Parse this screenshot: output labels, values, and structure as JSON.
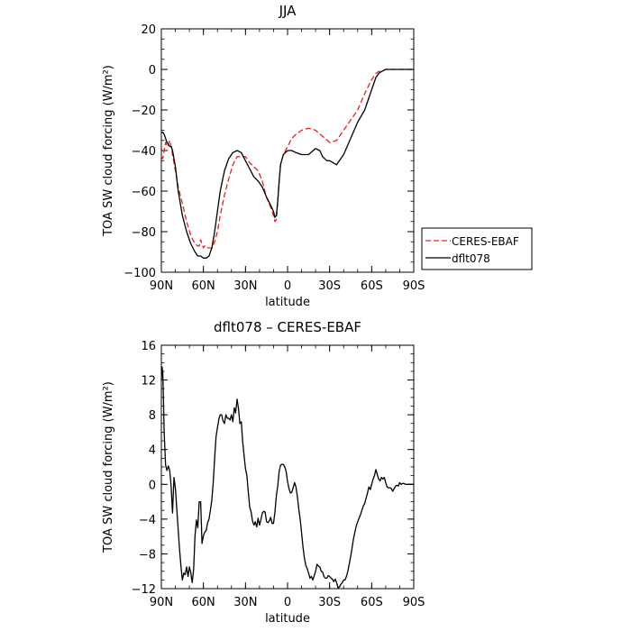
{
  "chart_data": [
    {
      "type": "line",
      "title": "JJA",
      "xlabel": "latitude",
      "ylabel": "TOA SW cloud forcing (W/m²)",
      "xlim": [
        90,
        -90
      ],
      "ylim": [
        -100,
        20
      ],
      "xticks": [
        90,
        60,
        30,
        0,
        -30,
        -60,
        -90
      ],
      "xtick_labels": [
        "90N",
        "60N",
        "30N",
        "0",
        "30S",
        "60S",
        "90S"
      ],
      "yticks": [
        -100,
        -80,
        -60,
        -40,
        -20,
        0,
        20
      ],
      "ytick_labels": [
        "−100",
        "−80",
        "−60",
        "−40",
        "−20",
        "0",
        "20"
      ],
      "legend_position": "outside right",
      "series": [
        {
          "name": "CERES-EBAF",
          "color": "#e8201e",
          "dash": "dashed",
          "x": [
            90,
            89,
            88,
            87,
            86,
            85,
            84,
            83,
            82,
            80,
            78,
            75,
            72,
            69,
            66,
            64,
            63,
            62,
            61,
            60,
            59,
            58,
            56,
            54,
            52,
            50,
            48,
            45,
            42,
            39,
            36,
            33,
            30,
            27,
            24,
            21,
            18,
            15,
            12,
            10,
            9,
            8,
            7,
            6,
            5,
            3,
            0,
            -3,
            -6,
            -10,
            -15,
            -20,
            -25,
            -30,
            -35,
            -40,
            -45,
            -50,
            -55,
            -60,
            -63,
            -65,
            -67,
            -70,
            -73,
            -76,
            -80,
            -85,
            -90
          ],
          "y": [
            -43,
            -44,
            -40,
            -36,
            -38,
            -37,
            -35,
            -38,
            -42,
            -50,
            -58,
            -66,
            -75,
            -82,
            -86,
            -87,
            -87,
            -84,
            -86,
            -88,
            -87,
            -88,
            -88,
            -88,
            -85,
            -80,
            -72,
            -62,
            -54,
            -47,
            -43,
            -43,
            -43,
            -46,
            -48,
            -50,
            -55,
            -63,
            -68,
            -72,
            -75,
            -74,
            -65,
            -55,
            -47,
            -42,
            -38,
            -34,
            -32,
            -30,
            -29,
            -30,
            -33,
            -36,
            -35,
            -30,
            -25,
            -20,
            -12,
            -5,
            -2,
            -1,
            -1,
            0,
            0,
            0,
            0,
            0,
            0
          ]
        },
        {
          "name": "dflt078",
          "color": "#000000",
          "dash": "solid",
          "x": [
            90,
            89,
            88,
            87,
            86,
            85,
            84,
            83,
            82,
            80,
            78,
            75,
            72,
            69,
            66,
            64,
            62,
            60,
            58,
            56,
            54,
            52,
            50,
            48,
            45,
            42,
            39,
            36,
            33,
            30,
            27,
            24,
            21,
            18,
            15,
            12,
            10,
            9,
            8,
            7,
            6,
            5,
            3,
            0,
            -3,
            -6,
            -10,
            -15,
            -20,
            -23,
            -25,
            -28,
            -30,
            -35,
            -40,
            -45,
            -50,
            -55,
            -60,
            -63,
            -65,
            -67,
            -70,
            -73,
            -76,
            -80,
            -85,
            -90
          ],
          "y": [
            -31,
            -31,
            -32,
            -34,
            -36,
            -37,
            -38,
            -38,
            -40,
            -48,
            -60,
            -72,
            -80,
            -86,
            -90,
            -92,
            -92,
            -93,
            -93,
            -92,
            -88,
            -80,
            -70,
            -60,
            -50,
            -44,
            -41,
            -40,
            -41,
            -45,
            -49,
            -53,
            -55,
            -58,
            -63,
            -67,
            -70,
            -73,
            -72,
            -65,
            -55,
            -47,
            -42,
            -40,
            -40,
            -41,
            -42,
            -42,
            -39,
            -40,
            -43,
            -45,
            -45,
            -47,
            -42,
            -34,
            -26,
            -20,
            -10,
            -4,
            -2,
            -1,
            0,
            0,
            0,
            0,
            0,
            0
          ]
        }
      ]
    },
    {
      "type": "line",
      "title": "dflt078 – CERES-EBAF",
      "xlabel": "latitude",
      "ylabel": "TOA SW cloud forcing (W/m²)",
      "xlim": [
        90,
        -90
      ],
      "ylim": [
        -12,
        16
      ],
      "xticks": [
        90,
        60,
        30,
        0,
        -30,
        -60,
        -90
      ],
      "xtick_labels": [
        "90N",
        "60N",
        "30N",
        "0",
        "30S",
        "60S",
        "90S"
      ],
      "yticks": [
        -12,
        -8,
        -4,
        0,
        4,
        8,
        12,
        16
      ],
      "ytick_labels": [
        "−12",
        "−8",
        "−4",
        "0",
        "4",
        "8",
        "12",
        "16"
      ],
      "series": [
        {
          "color": "#000000",
          "dash": "solid",
          "x": [
            90,
            89.5,
            89,
            88.5,
            88,
            87,
            86,
            85,
            84,
            83,
            82,
            81,
            80,
            79,
            78,
            77,
            76,
            75,
            74,
            73,
            72,
            71,
            70,
            69,
            68,
            67,
            66,
            65,
            64,
            63,
            62,
            61,
            60,
            59,
            58,
            57,
            56,
            55,
            54,
            53,
            52,
            51,
            50,
            49,
            48,
            47,
            46,
            45,
            44,
            43,
            42,
            41,
            40,
            39,
            38,
            37,
            36,
            35,
            34,
            33,
            32,
            31,
            30,
            29,
            28,
            27,
            26,
            25,
            24,
            23,
            22,
            21,
            20,
            19,
            18,
            17,
            16,
            15,
            14,
            13,
            12,
            11,
            10,
            9,
            8,
            7,
            6,
            5,
            4,
            3,
            2,
            1,
            0,
            -1,
            -2,
            -3,
            -4,
            -5,
            -6,
            -7,
            -8,
            -9,
            -10,
            -11,
            -12,
            -13,
            -14,
            -15,
            -16,
            -17,
            -18,
            -19,
            -20,
            -21,
            -22,
            -23,
            -24,
            -25,
            -26,
            -27,
            -28,
            -29,
            -30,
            -31,
            -32,
            -33,
            -34,
            -35,
            -36,
            -37,
            -38,
            -39,
            -40,
            -41,
            -42,
            -43,
            -44,
            -45,
            -46,
            -47,
            -48,
            -49,
            -50,
            -51,
            -52,
            -53,
            -54,
            -55,
            -56,
            -57,
            -58,
            -59,
            -60,
            -61,
            -62,
            -63,
            -64,
            -65,
            -66,
            -67,
            -68,
            -69,
            -70,
            -71,
            -72,
            -73,
            -74,
            -75,
            -76,
            -77,
            -78,
            -79,
            -80,
            -81,
            -82,
            -83,
            -84,
            -85,
            -86,
            -87,
            -88,
            -89,
            -90
          ],
          "y": [
            12,
            13.5,
            12.8,
            10,
            6,
            2.2,
            1.6,
            2.1,
            1.6,
            -0.3,
            -3.3,
            0.8,
            -0.5,
            -2.8,
            -5.3,
            -7.5,
            -9.5,
            -11,
            -10.2,
            -10.4,
            -9.5,
            -10.6,
            -9.5,
            -10.2,
            -11.3,
            -9.8,
            -6,
            -4.1,
            -5,
            -2,
            -2,
            -6.8,
            -5.9,
            -5.5,
            -5.3,
            -4.4,
            -4,
            -3,
            -1.8,
            0.3,
            3,
            5.5,
            6.5,
            7.5,
            8,
            8,
            7.3,
            7,
            8,
            7.6,
            7.6,
            7.4,
            8,
            7.2,
            8.8,
            8.2,
            9.8,
            8.7,
            7,
            7.2,
            4.9,
            3.3,
            1.8,
            1,
            -0.8,
            -2.6,
            -3.2,
            -4.2,
            -4.7,
            -4.3,
            -4.9,
            -3.9,
            -4.7,
            -4.1,
            -3.3,
            -3.1,
            -3.2,
            -4.3,
            -4.4,
            -4.2,
            -3.8,
            -4.5,
            -4.5,
            -3.2,
            -1.3,
            -0.2,
            1.5,
            2.2,
            2.3,
            2.3,
            2,
            1.5,
            0.3,
            -0.5,
            -1,
            -0.9,
            -0.4,
            0.2,
            -0.3,
            -1.4,
            -2.8,
            -4,
            -5.6,
            -7.2,
            -8.5,
            -9.3,
            -9.7,
            -10.2,
            -10.8,
            -10.6,
            -11,
            -10.5,
            -10,
            -9.2,
            -9.4,
            -9.5,
            -10,
            -10.1,
            -10.6,
            -10.8,
            -10.8,
            -10.5,
            -10.6,
            -10.8,
            -10.9,
            -11.2,
            -10.9,
            -11.3,
            -11.9,
            -11.8,
            -11.5,
            -11.3,
            -11,
            -11,
            -10.6,
            -10,
            -9.2,
            -8.3,
            -7.3,
            -6.3,
            -5.5,
            -4.8,
            -4.3,
            -3.9,
            -3.5,
            -3,
            -2.5,
            -2.2,
            -1.6,
            -1,
            -0.3,
            -0.6,
            0,
            0.6,
            1,
            1.7,
            1.1,
            0.6,
            0.4,
            0.8,
            0.6,
            0.8,
            0.2,
            -0.3,
            -0.4,
            -0.4,
            -0.5,
            -0.8,
            -0.5,
            -0.2,
            -0.1,
            -0.2,
            0.2,
            0,
            0.1,
            0.1,
            0,
            0,
            0,
            0,
            0,
            0,
            0
          ]
        }
      ]
    }
  ]
}
